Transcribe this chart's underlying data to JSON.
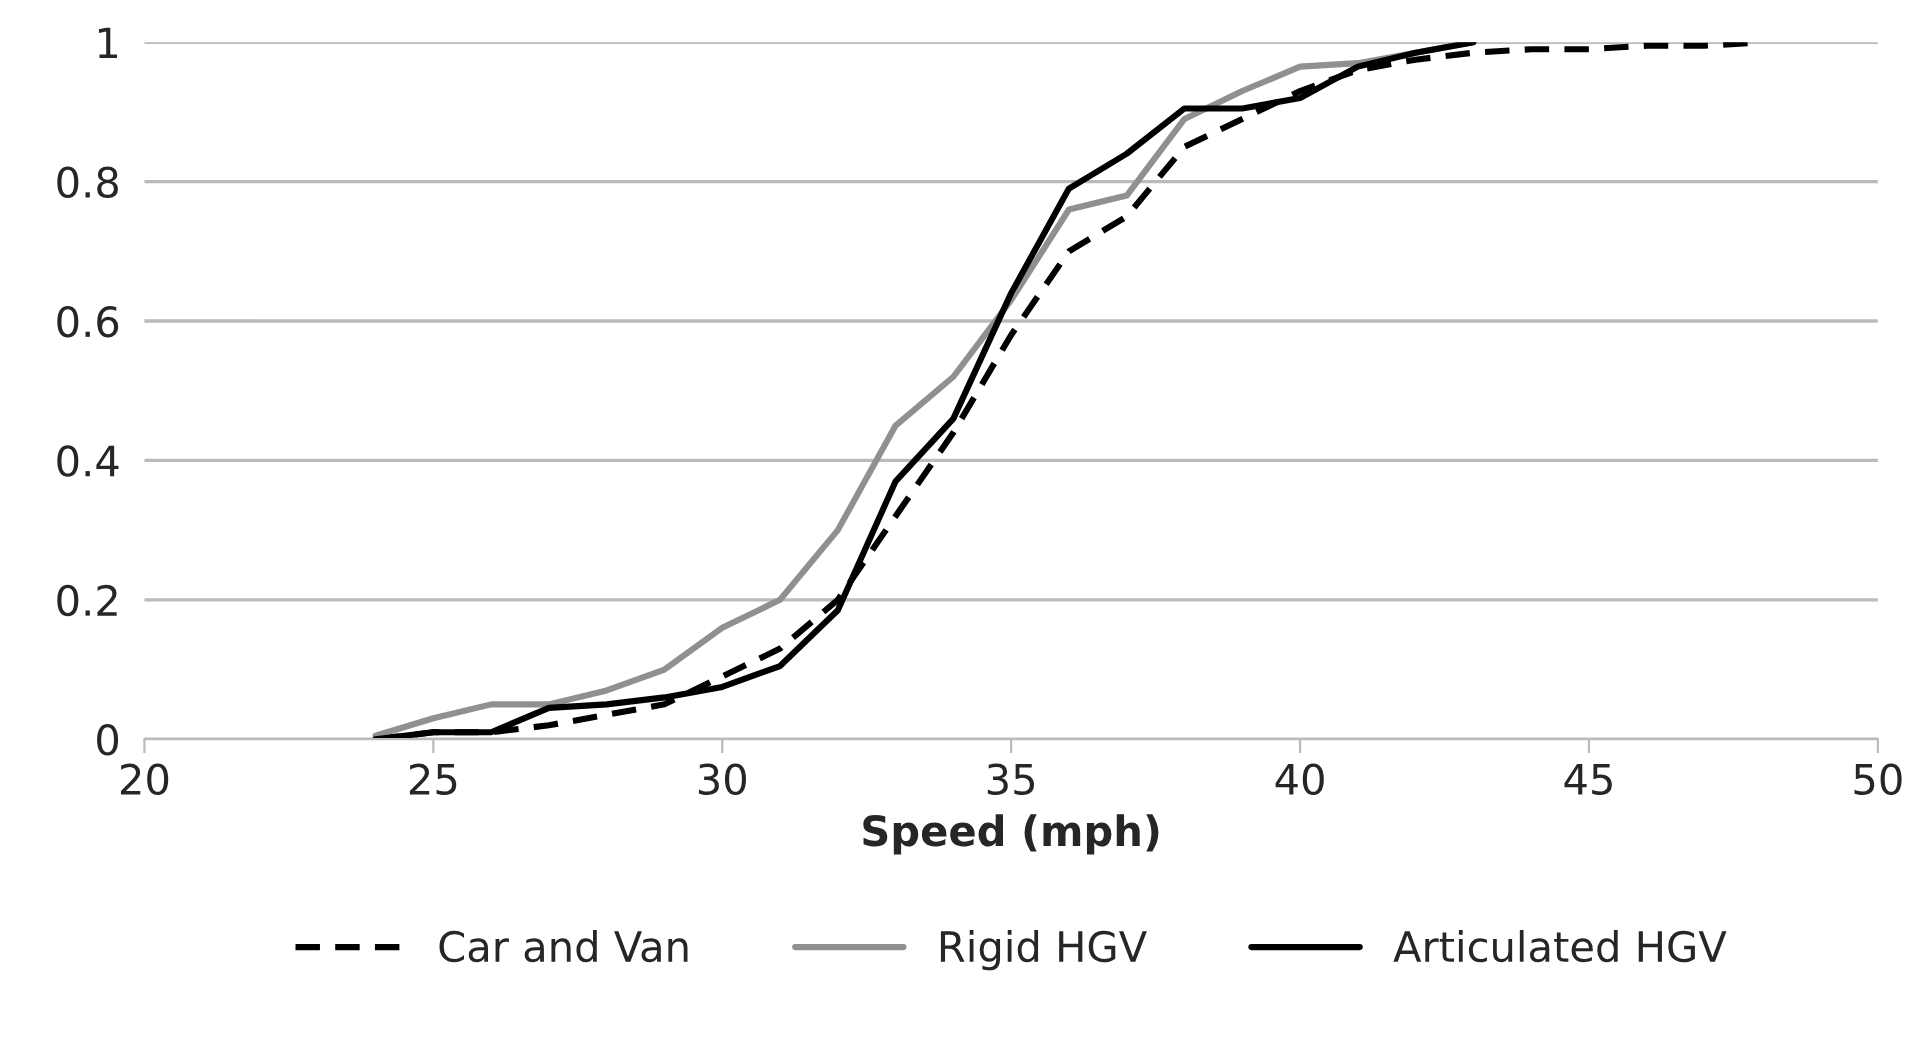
{
  "chart_data": {
    "type": "line",
    "xlabel": "Speed (mph)",
    "xlim": [
      20,
      50
    ],
    "xticks": [
      20,
      25,
      30,
      35,
      40,
      45,
      50
    ],
    "ylim": [
      0,
      1
    ],
    "yticks": [
      0,
      0.2,
      0.4,
      0.6,
      0.8,
      1
    ],
    "grid": "y",
    "legend": "bottom",
    "series": [
      {
        "name": "Car and Van",
        "color": "#000000",
        "line_style": "dashed",
        "x": [
          24,
          25,
          26,
          27,
          28,
          29,
          30,
          31,
          32,
          33,
          34,
          35,
          36,
          37,
          38,
          39,
          40,
          41,
          42,
          43,
          44,
          45,
          46,
          47,
          48
        ],
        "values": [
          0,
          0.01,
          0.01,
          0.02,
          0.035,
          0.05,
          0.09,
          0.13,
          0.2,
          0.32,
          0.44,
          0.58,
          0.7,
          0.75,
          0.85,
          0.89,
          0.93,
          0.96,
          0.975,
          0.985,
          0.99,
          0.99,
          0.995,
          0.995,
          1.0
        ]
      },
      {
        "name": "Rigid HGV",
        "color": "#909090",
        "line_style": "solid",
        "x": [
          24,
          25,
          26,
          27,
          28,
          29,
          30,
          31,
          32,
          33,
          34,
          35,
          36,
          37,
          38,
          39,
          40,
          41,
          42,
          43
        ],
        "values": [
          0.005,
          0.03,
          0.05,
          0.05,
          0.07,
          0.1,
          0.16,
          0.2,
          0.3,
          0.45,
          0.52,
          0.63,
          0.76,
          0.78,
          0.89,
          0.93,
          0.965,
          0.97,
          0.985,
          1.0
        ]
      },
      {
        "name": "Articulated HGV",
        "color": "#000000",
        "line_style": "solid",
        "x": [
          24,
          25,
          26,
          27,
          28,
          29,
          30,
          31,
          32,
          33,
          34,
          35,
          36,
          37,
          38,
          39,
          40,
          41,
          42,
          43
        ],
        "values": [
          0,
          0.01,
          0.01,
          0.045,
          0.05,
          0.06,
          0.075,
          0.105,
          0.185,
          0.37,
          0.46,
          0.64,
          0.79,
          0.84,
          0.905,
          0.905,
          0.92,
          0.965,
          0.985,
          1.0
        ]
      }
    ]
  }
}
